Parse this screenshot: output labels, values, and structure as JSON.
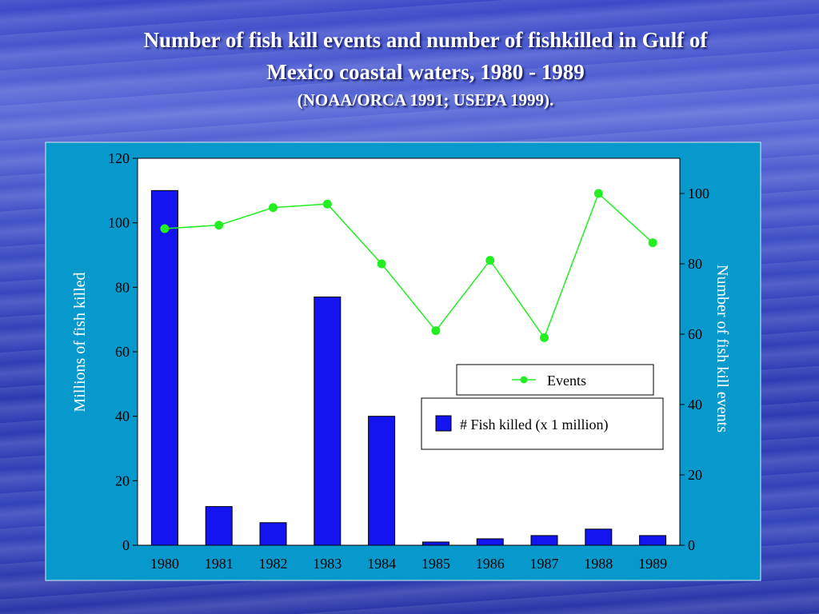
{
  "slide": {
    "title_line1": "Number of fish kill events and number of fishkilled in Gulf of",
    "title_line2": "Mexico coastal waters, 1980 - 1989",
    "subtitle": "(NOAA/ORCA 1991; USEPA 1999)."
  },
  "chart_data": {
    "type": "bar+line",
    "categories": [
      "1980",
      "1981",
      "1982",
      "1983",
      "1984",
      "1985",
      "1986",
      "1987",
      "1988",
      "1989"
    ],
    "series": [
      {
        "name": "# Fish killed (x 1 million)",
        "type": "bar",
        "axis": "left",
        "values": [
          110,
          12,
          7,
          77,
          40,
          1,
          2,
          3,
          5,
          3
        ],
        "color": "#1414f0"
      },
      {
        "name": "Events",
        "type": "line",
        "axis": "right",
        "values": [
          90,
          91,
          96,
          97,
          80,
          61,
          81,
          59,
          100,
          86
        ],
        "color": "#22ee22"
      }
    ],
    "ylabel_left": "Millions of fish killed",
    "ylabel_right": "Number of fish kill events",
    "ylim_left": [
      0,
      120
    ],
    "yticks_left": [
      0,
      20,
      40,
      60,
      80,
      100,
      120
    ],
    "ylim_right": [
      0,
      110
    ],
    "yticks_right": [
      0,
      20,
      40,
      60,
      80,
      100
    ],
    "grid": false,
    "legend": "center-right",
    "colors": {
      "panel_bg": "#0899cc",
      "plot_bg": "#ffffff",
      "axis": "#000000"
    }
  }
}
